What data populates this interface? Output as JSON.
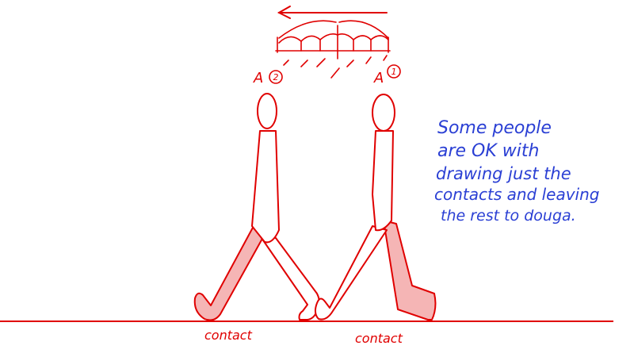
{
  "labels": {
    "pose_left": "A",
    "pose_left_num": "2",
    "pose_right": "A",
    "pose_right_num": "1",
    "contact_left": "contact",
    "contact_right": "contact"
  },
  "note": {
    "lines": [
      "Some people",
      "are OK with",
      "drawing just the",
      "contacts and leaving",
      "the rest to douga."
    ]
  },
  "colors": {
    "line": "#e00000",
    "fill": "#f5b5b5",
    "note_ink": "#2a3fd4",
    "background": "#ffffff"
  }
}
